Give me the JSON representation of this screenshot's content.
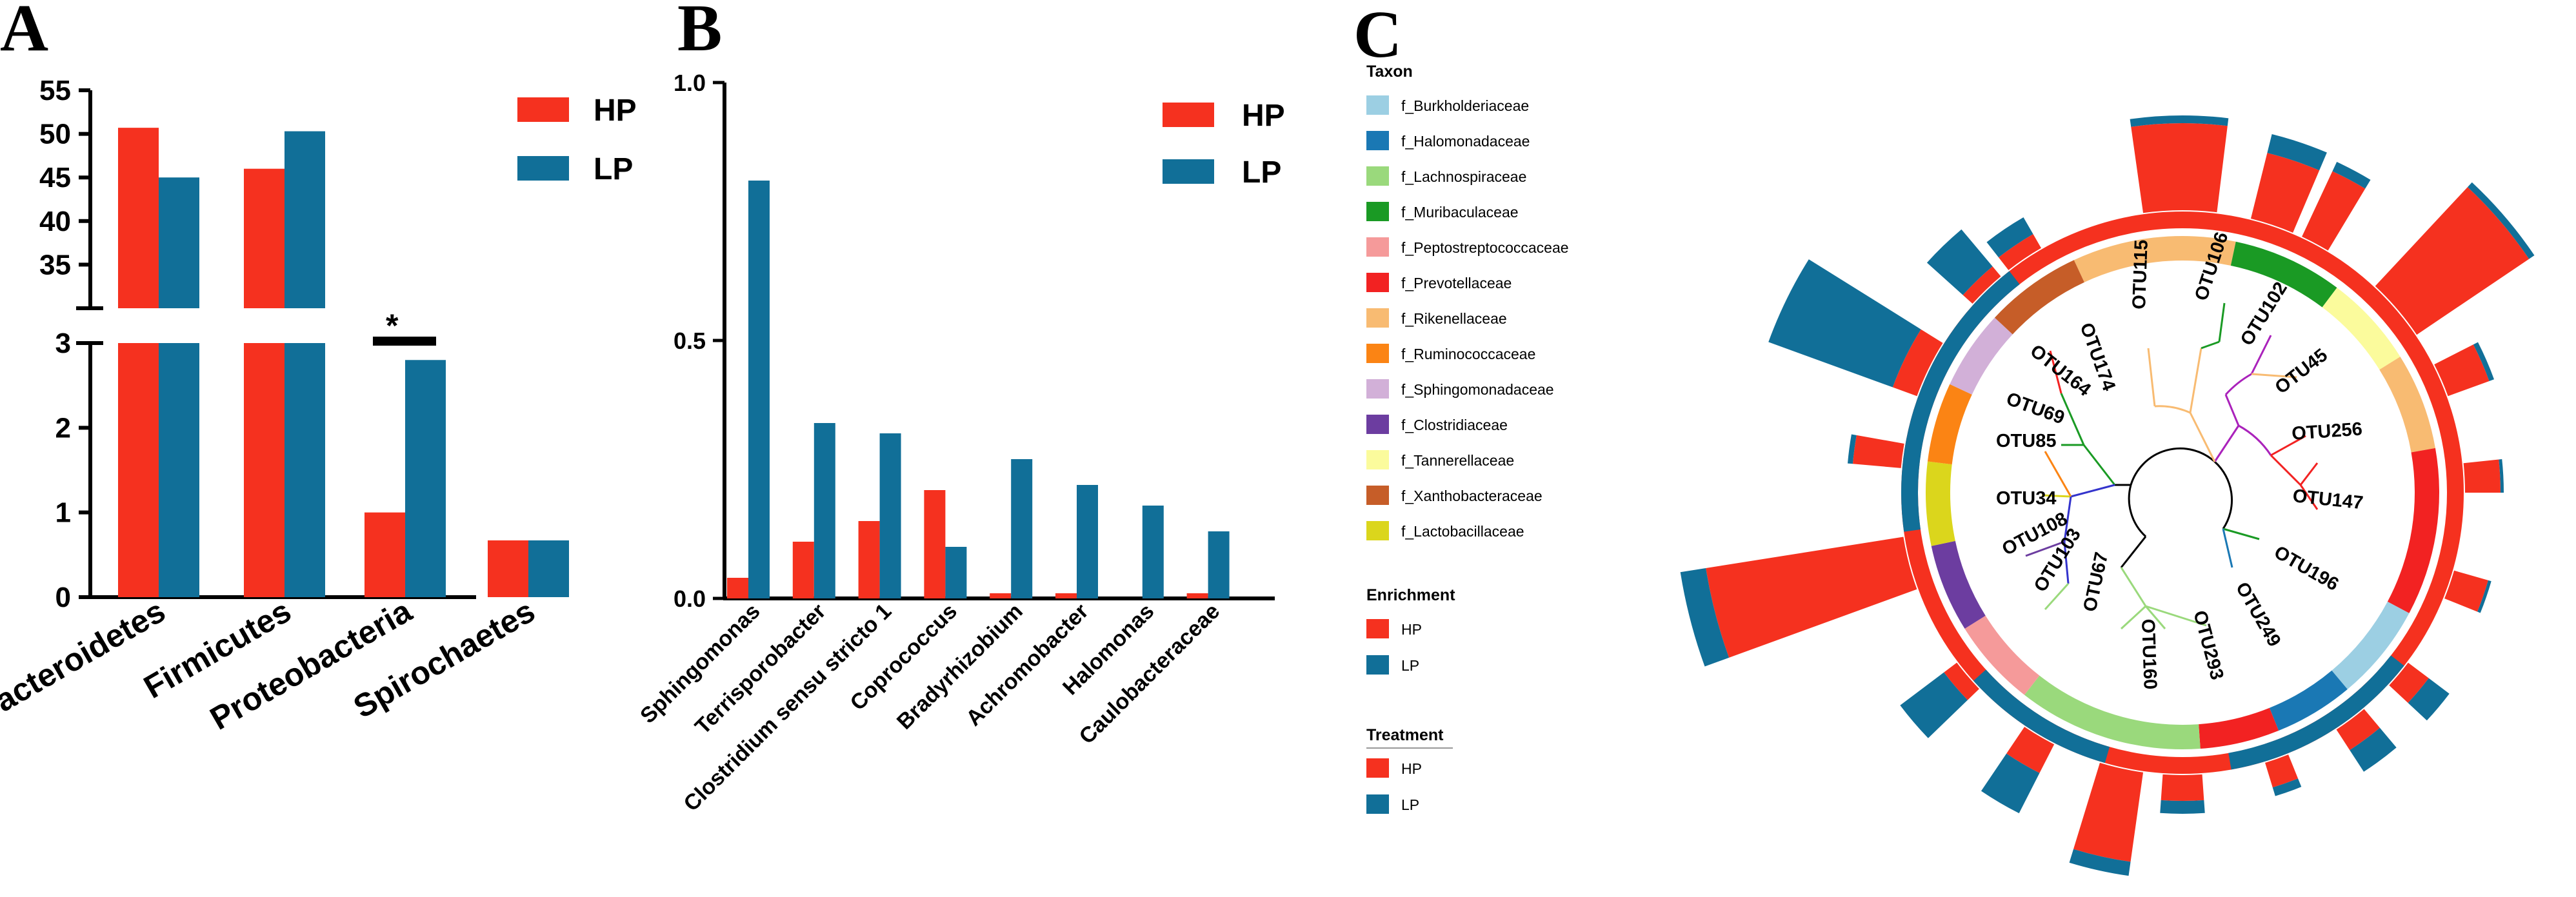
{
  "colors": {
    "HP": "#f5311f",
    "LP": "#116f98"
  },
  "panels": {
    "A": "A",
    "B": "B",
    "C": "C"
  },
  "chart_data": [
    {
      "type": "bar",
      "panel": "A",
      "categories": [
        "Bacteroidetes",
        "Firmicutes",
        "Proteobacteria",
        "Spirochaetes"
      ],
      "series": [
        {
          "name": "HP",
          "values": [
            50.7,
            46.0,
            1.0,
            0.67
          ]
        },
        {
          "name": "LP",
          "values": [
            45.0,
            50.3,
            2.8,
            0.67
          ]
        }
      ],
      "broken_axis": {
        "lower_ylim": [
          0,
          3
        ],
        "upper_ylim": [
          30,
          55
        ]
      },
      "lower_ticks": [
        "0",
        "1",
        "2",
        "3"
      ],
      "upper_ticks": [
        "35",
        "40",
        "45",
        "50",
        "55"
      ],
      "annotation": "*",
      "legend": [
        "HP",
        "LP"
      ]
    },
    {
      "type": "bar",
      "panel": "B",
      "categories": [
        "Sphingomonas",
        "Terrisporobacter",
        "Clostridium sensu stricto 1",
        "Coprococcus",
        "Bradyrhizobium",
        "Achromobacter",
        "Halomonas",
        "Caulobacteraceae"
      ],
      "series": [
        {
          "name": "HP",
          "values": [
            0.04,
            0.11,
            0.15,
            0.21,
            0.01,
            0.01,
            0.0,
            0.01
          ]
        },
        {
          "name": "LP",
          "values": [
            0.81,
            0.34,
            0.32,
            0.1,
            0.27,
            0.22,
            0.18,
            0.13
          ]
        }
      ],
      "ylim": [
        0,
        1.0
      ],
      "ticks": [
        "0.0",
        "0.5",
        "1.0"
      ],
      "legend": [
        "HP",
        "LP"
      ]
    },
    {
      "type": "circular-tree",
      "panel": "C",
      "taxon_title": "Taxon",
      "taxa": [
        {
          "name": "f_Burkholderiaceae",
          "color": "#9ccfe3"
        },
        {
          "name": "f_Halomonadaceae",
          "color": "#1a78b4"
        },
        {
          "name": "f_Lachnospiraceae",
          "color": "#9ad97c"
        },
        {
          "name": "f_Muribaculaceae",
          "color": "#1a9a24"
        },
        {
          "name": "f_Peptostreptococcaceae",
          "color": "#f59a9a"
        },
        {
          "name": "f_Prevotellaceae",
          "color": "#f22222"
        },
        {
          "name": "f_Rikenellaceae",
          "color": "#f8bb72"
        },
        {
          "name": "f_Ruminococcaceae",
          "color": "#fb8414"
        },
        {
          "name": "f_Sphingomonadaceae",
          "color": "#d2b0d8"
        },
        {
          "name": "f_Clostridiaceae",
          "color": "#6c3da0"
        },
        {
          "name": "f_Tannerellaceae",
          "color": "#fbfb9c"
        },
        {
          "name": "f_Xanthobacteraceae",
          "color": "#c65d28"
        },
        {
          "name": "f_Lactobacillaceae",
          "color": "#dbd61c"
        }
      ],
      "enrichment_title": "Enrichment",
      "enrichment": [
        "HP",
        "LP"
      ],
      "treatment_title": "Treatment",
      "treatment": [
        "HP",
        "LP"
      ],
      "otus": [
        "OTU115",
        "OTU106",
        "OTU102",
        "OTU45",
        "OTU256",
        "OTU147",
        "OTU196",
        "OTU249",
        "OTU293",
        "OTU160",
        "OTU67",
        "OTU103",
        "OTU108",
        "OTU34",
        "OTU85",
        "OTU69",
        "OTU164",
        "OTU174"
      ]
    }
  ]
}
